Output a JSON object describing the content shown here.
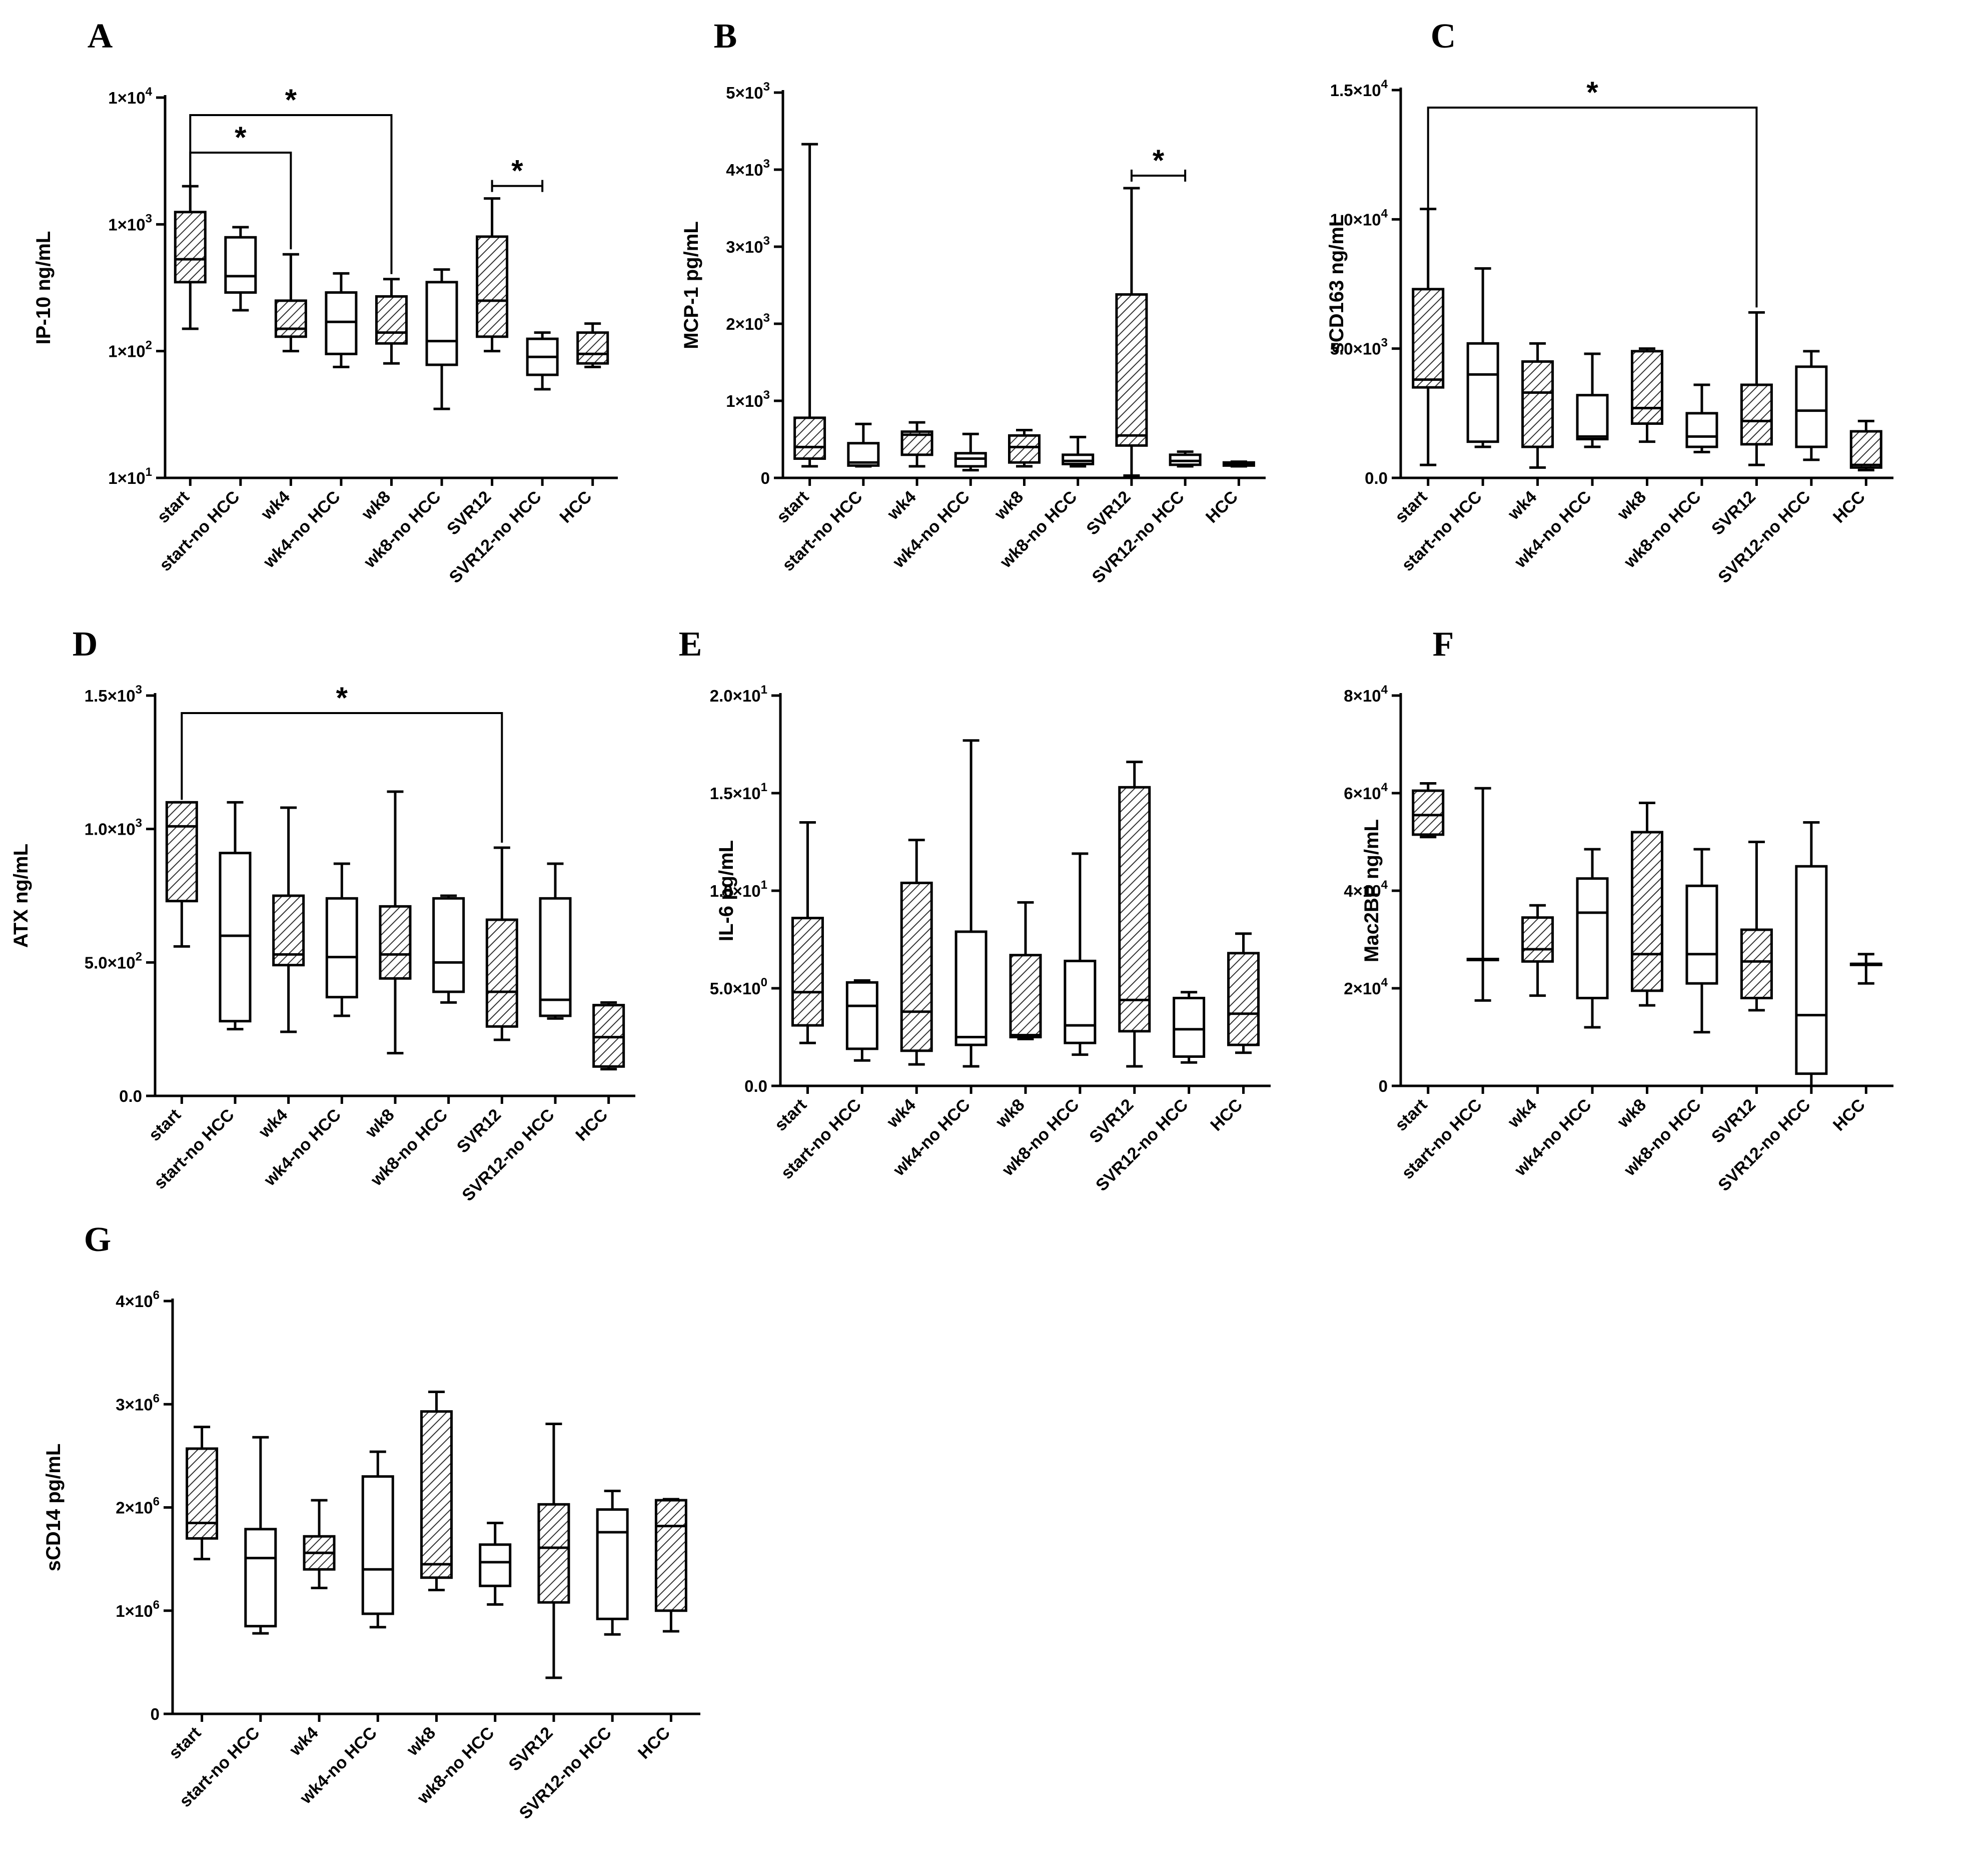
{
  "figure": {
    "background": "#ffffff",
    "stroke": "#000000"
  },
  "chart_data": [
    {
      "panel": "A",
      "type": "box",
      "scale": "log",
      "ylabel": "IP-10 ng/mL",
      "ylim": [
        10,
        10000
      ],
      "yticks": [
        {
          "v": 10,
          "b": "1×10",
          "e": "1"
        },
        {
          "v": 100,
          "b": "1×10",
          "e": "2"
        },
        {
          "v": 1000,
          "b": "1×10",
          "e": "3"
        },
        {
          "v": 10000,
          "b": "1×10",
          "e": "4"
        }
      ],
      "categories": [
        "start",
        "start-no HCC",
        "wk4",
        "wk4-no HCC",
        "wk8",
        "wk8-no HCC",
        "SVR12",
        "SVR12-no HCC",
        "HCC"
      ],
      "boxes": [
        {
          "min": 150,
          "q1": 350,
          "median": 530,
          "q3": 1250,
          "max": 2000,
          "hatched": true
        },
        {
          "min": 210,
          "q1": 290,
          "median": 390,
          "q3": 790,
          "max": 950,
          "hatched": false
        },
        {
          "min": 100,
          "q1": 130,
          "median": 150,
          "q3": 250,
          "max": 580,
          "hatched": true
        },
        {
          "min": 75,
          "q1": 95,
          "median": 170,
          "q3": 290,
          "max": 410,
          "hatched": false
        },
        {
          "min": 80,
          "q1": 115,
          "median": 140,
          "q3": 270,
          "max": 370,
          "hatched": true
        },
        {
          "min": 35,
          "q1": 78,
          "median": 120,
          "q3": 350,
          "max": 440,
          "hatched": false
        },
        {
          "min": 100,
          "q1": 130,
          "median": 250,
          "q3": 800,
          "max": 1600,
          "hatched": true
        },
        {
          "min": 50,
          "q1": 65,
          "median": 90,
          "q3": 125,
          "max": 140,
          "hatched": false
        },
        {
          "min": 75,
          "q1": 80,
          "median": 95,
          "q3": 140,
          "max": 165,
          "hatched": true
        }
      ],
      "significance": [
        {
          "from": 0,
          "to": 2,
          "label": "*"
        },
        {
          "from": 0,
          "to": 4,
          "label": "*"
        },
        {
          "from": 6,
          "to": 7,
          "label": "*"
        }
      ]
    },
    {
      "panel": "B",
      "type": "box",
      "scale": "linear",
      "ylabel": "MCP-1 pg/mL",
      "ylim": [
        0,
        5000
      ],
      "yticks": [
        {
          "v": 0,
          "t": "0"
        },
        {
          "v": 1000,
          "b": "1×10",
          "e": "3"
        },
        {
          "v": 2000,
          "b": "2×10",
          "e": "3"
        },
        {
          "v": 3000,
          "b": "3×10",
          "e": "3"
        },
        {
          "v": 4000,
          "b": "4×10",
          "e": "3"
        },
        {
          "v": 5000,
          "b": "5×10",
          "e": "3"
        }
      ],
      "categories": [
        "start",
        "start-no HCC",
        "wk4",
        "wk4-no HCC",
        "wk8",
        "wk8-no HCC",
        "SVR12",
        "SVR12-no HCC",
        "HCC"
      ],
      "boxes": [
        {
          "min": 150,
          "q1": 250,
          "median": 400,
          "q3": 780,
          "max": 4330,
          "hatched": true
        },
        {
          "min": 150,
          "q1": 160,
          "median": 200,
          "q3": 450,
          "max": 700,
          "hatched": false
        },
        {
          "min": 150,
          "q1": 300,
          "median": 560,
          "q3": 600,
          "max": 720,
          "hatched": true
        },
        {
          "min": 100,
          "q1": 150,
          "median": 250,
          "q3": 320,
          "max": 570,
          "hatched": false
        },
        {
          "min": 150,
          "q1": 200,
          "median": 400,
          "q3": 550,
          "max": 620,
          "hatched": true
        },
        {
          "min": 150,
          "q1": 180,
          "median": 220,
          "q3": 300,
          "max": 530,
          "hatched": false
        },
        {
          "min": 30,
          "q1": 420,
          "median": 550,
          "q3": 2380,
          "max": 3760,
          "hatched": true
        },
        {
          "min": 150,
          "q1": 170,
          "median": 220,
          "q3": 300,
          "max": 340,
          "hatched": false
        },
        {
          "min": 150,
          "q1": 160,
          "median": 175,
          "q3": 200,
          "max": 210,
          "hatched": false
        }
      ],
      "significance": [
        {
          "from": 6,
          "to": 7,
          "label": "*"
        }
      ]
    },
    {
      "panel": "C",
      "type": "box",
      "scale": "linear",
      "ylabel": "sCD163 ng/mL",
      "ylim": [
        0,
        15000
      ],
      "yticks": [
        {
          "v": 0,
          "t": "0.0"
        },
        {
          "v": 5000,
          "b": "5.0×10",
          "e": "3"
        },
        {
          "v": 10000,
          "b": "1.0×10",
          "e": "4"
        },
        {
          "v": 15000,
          "b": "1.5×10",
          "e": "4"
        }
      ],
      "categories": [
        "start",
        "start-no HCC",
        "wk4",
        "wk4-no HCC",
        "wk8",
        "wk8-no HCC",
        "SVR12",
        "SVR12-no HCC",
        "HCC"
      ],
      "boxes": [
        {
          "min": 500,
          "q1": 3500,
          "median": 3800,
          "q3": 7300,
          "max": 10400,
          "hatched": true
        },
        {
          "min": 1200,
          "q1": 1400,
          "median": 4000,
          "q3": 5200,
          "max": 8100,
          "hatched": false
        },
        {
          "min": 400,
          "q1": 1200,
          "median": 3300,
          "q3": 4500,
          "max": 5200,
          "hatched": true
        },
        {
          "min": 1200,
          "q1": 1500,
          "median": 1600,
          "q3": 3200,
          "max": 4800,
          "hatched": false
        },
        {
          "min": 1400,
          "q1": 2100,
          "median": 2700,
          "q3": 4900,
          "max": 5000,
          "hatched": true
        },
        {
          "min": 1000,
          "q1": 1200,
          "median": 1600,
          "q3": 2500,
          "max": 3600,
          "hatched": false
        },
        {
          "min": 500,
          "q1": 1300,
          "median": 2200,
          "q3": 3600,
          "max": 6400,
          "hatched": true
        },
        {
          "min": 700,
          "q1": 1200,
          "median": 2600,
          "q3": 4300,
          "max": 4900,
          "hatched": false
        },
        {
          "min": 300,
          "q1": 400,
          "median": 500,
          "q3": 1800,
          "max": 2200,
          "hatched": true
        }
      ],
      "significance": [
        {
          "from": 0,
          "to": 6,
          "label": "*"
        }
      ]
    },
    {
      "panel": "D",
      "type": "box",
      "scale": "linear",
      "ylabel": "ATX ng/mL",
      "ylim": [
        0,
        1500
      ],
      "yticks": [
        {
          "v": 0,
          "t": "0.0"
        },
        {
          "v": 500,
          "b": "5.0×10",
          "e": "2"
        },
        {
          "v": 1000,
          "b": "1.0×10",
          "e": "3"
        },
        {
          "v": 1500,
          "b": "1.5×10",
          "e": "3"
        }
      ],
      "categories": [
        "start",
        "start-no HCC",
        "wk4",
        "wk4-no HCC",
        "wk8",
        "wk8-no HCC",
        "SVR12",
        "SVR12-no HCC",
        "HCC"
      ],
      "boxes": [
        {
          "min": 560,
          "q1": 730,
          "median": 1010,
          "q3": 1100,
          "max": 1100,
          "hatched": true
        },
        {
          "min": 250,
          "q1": 280,
          "median": 600,
          "q3": 910,
          "max": 1100,
          "hatched": false
        },
        {
          "min": 240,
          "q1": 490,
          "median": 530,
          "q3": 750,
          "max": 1080,
          "hatched": true
        },
        {
          "min": 300,
          "q1": 370,
          "median": 520,
          "q3": 740,
          "max": 870,
          "hatched": false
        },
        {
          "min": 160,
          "q1": 440,
          "median": 530,
          "q3": 710,
          "max": 1140,
          "hatched": true
        },
        {
          "min": 350,
          "q1": 390,
          "median": 500,
          "q3": 740,
          "max": 750,
          "hatched": false
        },
        {
          "min": 210,
          "q1": 260,
          "median": 390,
          "q3": 660,
          "max": 930,
          "hatched": true
        },
        {
          "min": 290,
          "q1": 300,
          "median": 360,
          "q3": 740,
          "max": 870,
          "hatched": false
        },
        {
          "min": 100,
          "q1": 110,
          "median": 220,
          "q3": 340,
          "max": 350,
          "hatched": true
        }
      ],
      "significance": [
        {
          "from": 0,
          "to": 6,
          "label": "*"
        }
      ]
    },
    {
      "panel": "E",
      "type": "box",
      "scale": "linear",
      "ylabel": "IL-6 pg/mL",
      "ylim": [
        0,
        20
      ],
      "yticks": [
        {
          "v": 0,
          "t": "0.0"
        },
        {
          "v": 5,
          "b": "5.0×10",
          "e": "0"
        },
        {
          "v": 10,
          "b": "1.0×10",
          "e": "1"
        },
        {
          "v": 15,
          "b": "1.5×10",
          "e": "1"
        },
        {
          "v": 20,
          "b": "2.0×10",
          "e": "1"
        }
      ],
      "categories": [
        "start",
        "start-no HCC",
        "wk4",
        "wk4-no HCC",
        "wk8",
        "wk8-no HCC",
        "SVR12",
        "SVR12-no HCC",
        "HCC"
      ],
      "boxes": [
        {
          "min": 2.2,
          "q1": 3.1,
          "median": 4.8,
          "q3": 8.6,
          "max": 13.5,
          "hatched": true
        },
        {
          "min": 1.3,
          "q1": 1.9,
          "median": 4.1,
          "q3": 5.3,
          "max": 5.4,
          "hatched": false
        },
        {
          "min": 1.1,
          "q1": 1.8,
          "median": 3.8,
          "q3": 10.4,
          "max": 12.6,
          "hatched": true
        },
        {
          "min": 1.0,
          "q1": 2.1,
          "median": 2.5,
          "q3": 7.9,
          "max": 17.7,
          "hatched": false
        },
        {
          "min": 2.4,
          "q1": 2.5,
          "median": 2.6,
          "q3": 6.7,
          "max": 9.4,
          "hatched": true
        },
        {
          "min": 1.6,
          "q1": 2.2,
          "median": 3.1,
          "q3": 6.4,
          "max": 11.9,
          "hatched": false
        },
        {
          "min": 1.0,
          "q1": 2.8,
          "median": 4.4,
          "q3": 15.3,
          "max": 16.6,
          "hatched": true
        },
        {
          "min": 1.2,
          "q1": 1.5,
          "median": 2.9,
          "q3": 4.5,
          "max": 4.8,
          "hatched": false
        },
        {
          "min": 1.7,
          "q1": 2.1,
          "median": 3.7,
          "q3": 6.8,
          "max": 7.8,
          "hatched": true
        }
      ],
      "significance": []
    },
    {
      "panel": "F",
      "type": "box",
      "scale": "linear",
      "ylabel": "Mac2BP ng/mL",
      "ylim": [
        0,
        80000
      ],
      "yticks": [
        {
          "v": 0,
          "t": "0"
        },
        {
          "v": 20000,
          "b": "2×10",
          "e": "4"
        },
        {
          "v": 40000,
          "b": "4×10",
          "e": "4"
        },
        {
          "v": 60000,
          "b": "6×10",
          "e": "4"
        },
        {
          "v": 80000,
          "b": "8×10",
          "e": "4"
        }
      ],
      "categories": [
        "start",
        "start-no HCC",
        "wk4",
        "wk4-no HCC",
        "wk8",
        "wk8-no HCC",
        "SVR12",
        "SVR12-no HCC",
        "HCC"
      ],
      "boxes": [
        {
          "min": 51000,
          "q1": 51500,
          "median": 55500,
          "q3": 60500,
          "max": 62000,
          "hatched": true
        },
        {
          "min": 17500,
          "q1": 26000,
          "median": 26000,
          "q3": 26000,
          "max": 61000,
          "hatched": false
        },
        {
          "min": 18500,
          "q1": 25500,
          "median": 28000,
          "q3": 34500,
          "max": 37000,
          "hatched": true
        },
        {
          "min": 12000,
          "q1": 18000,
          "median": 35500,
          "q3": 42500,
          "max": 48500,
          "hatched": false
        },
        {
          "min": 16500,
          "q1": 19500,
          "median": 27000,
          "q3": 52000,
          "max": 58000,
          "hatched": true
        },
        {
          "min": 11000,
          "q1": 21000,
          "median": 27000,
          "q3": 41000,
          "max": 48500,
          "hatched": false
        },
        {
          "min": 15500,
          "q1": 18000,
          "median": 25500,
          "q3": 32000,
          "max": 50000,
          "hatched": true
        },
        {
          "min": 0,
          "q1": 2500,
          "median": 14500,
          "q3": 45000,
          "max": 54000,
          "hatched": false
        },
        {
          "min": 21000,
          "q1": 25000,
          "median": 25000,
          "q3": 25000,
          "max": 27000,
          "hatched": false
        }
      ],
      "significance": []
    },
    {
      "panel": "G",
      "type": "box",
      "scale": "linear",
      "ylabel": "sCD14 pg/mL",
      "ylim": [
        0,
        4000000
      ],
      "yticks": [
        {
          "v": 0,
          "t": "0"
        },
        {
          "v": 1000000,
          "b": "1×10",
          "e": "6"
        },
        {
          "v": 2000000,
          "b": "2×10",
          "e": "6"
        },
        {
          "v": 3000000,
          "b": "3×10",
          "e": "6"
        },
        {
          "v": 4000000,
          "b": "4×10",
          "e": "6"
        }
      ],
      "categories": [
        "start",
        "start-no HCC",
        "wk4",
        "wk4-no HCC",
        "wk8",
        "wk8-no HCC",
        "SVR12",
        "SVR12-no HCC",
        "HCC"
      ],
      "boxes": [
        {
          "min": 1500000,
          "q1": 1700000,
          "median": 1850000,
          "q3": 2570000,
          "max": 2780000,
          "hatched": true
        },
        {
          "min": 780000,
          "q1": 850000,
          "median": 1510000,
          "q3": 1790000,
          "max": 2680000,
          "hatched": false
        },
        {
          "min": 1220000,
          "q1": 1400000,
          "median": 1560000,
          "q3": 1720000,
          "max": 2070000,
          "hatched": true
        },
        {
          "min": 840000,
          "q1": 970000,
          "median": 1400000,
          "q3": 2300000,
          "max": 2540000,
          "hatched": false
        },
        {
          "min": 1200000,
          "q1": 1320000,
          "median": 1450000,
          "q3": 2930000,
          "max": 3120000,
          "hatched": true
        },
        {
          "min": 1060000,
          "q1": 1240000,
          "median": 1470000,
          "q3": 1640000,
          "max": 1850000,
          "hatched": false
        },
        {
          "min": 350000,
          "q1": 1080000,
          "median": 1610000,
          "q3": 2030000,
          "max": 2810000,
          "hatched": true
        },
        {
          "min": 770000,
          "q1": 920000,
          "median": 1760000,
          "q3": 1980000,
          "max": 2160000,
          "hatched": false
        },
        {
          "min": 800000,
          "q1": 1000000,
          "median": 1820000,
          "q3": 2070000,
          "max": 2080000,
          "hatched": true
        }
      ],
      "significance": []
    }
  ]
}
